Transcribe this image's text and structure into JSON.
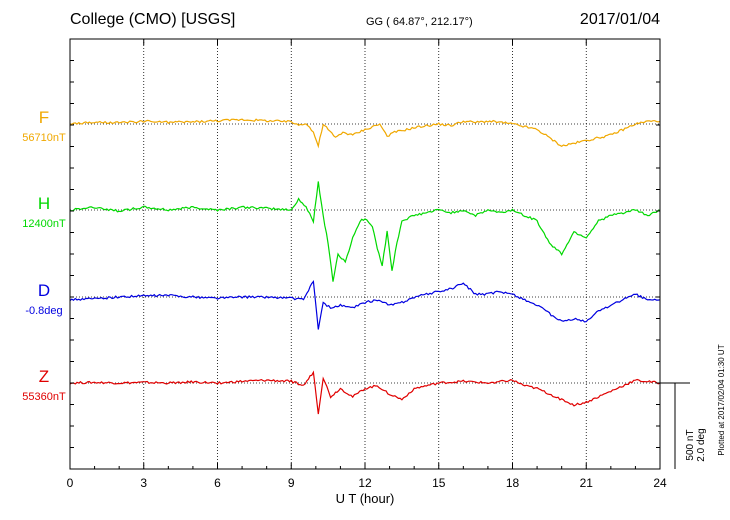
{
  "header": {
    "station": "College (CMO)  [USGS]",
    "coords": "GG ( 64.87°, 212.17°)",
    "date": "2017/01/04"
  },
  "scale": {
    "nt": "500 nT",
    "deg": "2.0 deg"
  },
  "plotted_note": "Plotted at 2017/02/04 01:30 UT",
  "chart_data": {
    "type": "line",
    "xlabel": "U T (hour)",
    "xlim": [
      0,
      24
    ],
    "xticks": [
      0,
      3,
      6,
      9,
      12,
      15,
      18,
      21,
      24
    ],
    "grid": true,
    "series": [
      {
        "name": "F",
        "baseline_label": "56710nT",
        "color": "#f0a800",
        "points": [
          [
            0,
            0
          ],
          [
            1,
            3
          ],
          [
            2,
            2
          ],
          [
            3,
            5
          ],
          [
            4,
            3
          ],
          [
            5,
            4
          ],
          [
            6,
            6
          ],
          [
            7,
            8
          ],
          [
            8,
            6
          ],
          [
            9,
            4
          ],
          [
            9.3,
            -2
          ],
          [
            9.6,
            2
          ],
          [
            9.9,
            -15
          ],
          [
            10.1,
            -40
          ],
          [
            10.3,
            0
          ],
          [
            10.5,
            -10
          ],
          [
            10.8,
            -25
          ],
          [
            11.1,
            -15
          ],
          [
            11.5,
            -20
          ],
          [
            12,
            -10
          ],
          [
            12.3,
            -5
          ],
          [
            12.6,
            0
          ],
          [
            12.9,
            -22
          ],
          [
            13.2,
            -15
          ],
          [
            13.7,
            -10
          ],
          [
            14.2,
            -5
          ],
          [
            15,
            0
          ],
          [
            15.5,
            -3
          ],
          [
            16,
            5
          ],
          [
            16.5,
            3
          ],
          [
            17,
            5
          ],
          [
            17.5,
            3
          ],
          [
            18,
            0
          ],
          [
            18.5,
            -5
          ],
          [
            19,
            -10
          ],
          [
            19.5,
            -25
          ],
          [
            20,
            -40
          ],
          [
            20.5,
            -35
          ],
          [
            21,
            -30
          ],
          [
            21.5,
            -25
          ],
          [
            22,
            -20
          ],
          [
            22.5,
            -10
          ],
          [
            23,
            0
          ],
          [
            23.5,
            5
          ],
          [
            24,
            5
          ]
        ]
      },
      {
        "name": "H",
        "baseline_label": "12400nT",
        "color": "#00d800",
        "points": [
          [
            0,
            0
          ],
          [
            1,
            5
          ],
          [
            2,
            -2
          ],
          [
            3,
            5
          ],
          [
            4,
            0
          ],
          [
            5,
            5
          ],
          [
            6,
            0
          ],
          [
            7,
            5
          ],
          [
            8,
            3
          ],
          [
            9,
            0
          ],
          [
            9.3,
            20
          ],
          [
            9.6,
            5
          ],
          [
            9.9,
            -20
          ],
          [
            10.1,
            50
          ],
          [
            10.3,
            -10
          ],
          [
            10.5,
            -60
          ],
          [
            10.7,
            -130
          ],
          [
            10.9,
            -80
          ],
          [
            11.2,
            -95
          ],
          [
            11.5,
            -50
          ],
          [
            11.8,
            -20
          ],
          [
            12,
            -15
          ],
          [
            12.3,
            -30
          ],
          [
            12.5,
            -70
          ],
          [
            12.7,
            -100
          ],
          [
            12.9,
            -40
          ],
          [
            13.1,
            -110
          ],
          [
            13.3,
            -60
          ],
          [
            13.5,
            -20
          ],
          [
            14,
            -10
          ],
          [
            14.5,
            -5
          ],
          [
            15,
            0
          ],
          [
            15.5,
            -5
          ],
          [
            16,
            0
          ],
          [
            16.5,
            -10
          ],
          [
            17,
            0
          ],
          [
            17.5,
            -5
          ],
          [
            18,
            0
          ],
          [
            18.5,
            -10
          ],
          [
            19,
            -20
          ],
          [
            19.5,
            -60
          ],
          [
            20,
            -80
          ],
          [
            20.5,
            -40
          ],
          [
            21,
            -50
          ],
          [
            21.5,
            -20
          ],
          [
            22,
            -10
          ],
          [
            22.5,
            -5
          ],
          [
            23,
            0
          ],
          [
            23.5,
            -10
          ],
          [
            24,
            0
          ]
        ]
      },
      {
        "name": "D",
        "baseline_label": "-0.8deg",
        "color": "#0000e0",
        "points": [
          [
            0,
            -5
          ],
          [
            1,
            -3
          ],
          [
            2,
            0
          ],
          [
            3,
            2
          ],
          [
            4,
            3
          ],
          [
            5,
            0
          ],
          [
            6,
            -2
          ],
          [
            7,
            0
          ],
          [
            8,
            0
          ],
          [
            9,
            -2
          ],
          [
            9.5,
            -5
          ],
          [
            9.9,
            30
          ],
          [
            10.1,
            -60
          ],
          [
            10.3,
            -10
          ],
          [
            10.6,
            -20
          ],
          [
            11,
            -15
          ],
          [
            11.5,
            -20
          ],
          [
            12,
            -10
          ],
          [
            12.5,
            -5
          ],
          [
            13,
            -15
          ],
          [
            13.5,
            -10
          ],
          [
            14,
            0
          ],
          [
            15,
            10
          ],
          [
            15.5,
            15
          ],
          [
            16,
            25
          ],
          [
            16.5,
            5
          ],
          [
            17,
            5
          ],
          [
            17.5,
            10
          ],
          [
            18,
            5
          ],
          [
            18.5,
            -5
          ],
          [
            19,
            -15
          ],
          [
            19.5,
            -30
          ],
          [
            20,
            -45
          ],
          [
            20.5,
            -40
          ],
          [
            21,
            -45
          ],
          [
            21.5,
            -25
          ],
          [
            22,
            -15
          ],
          [
            22.5,
            -5
          ],
          [
            23,
            5
          ],
          [
            23.5,
            -5
          ],
          [
            24,
            -5
          ]
        ]
      },
      {
        "name": "Z",
        "baseline_label": "55360nT",
        "color": "#e00000",
        "points": [
          [
            0,
            0
          ],
          [
            1,
            1
          ],
          [
            2,
            0
          ],
          [
            3,
            1
          ],
          [
            4,
            0
          ],
          [
            5,
            2
          ],
          [
            6,
            0
          ],
          [
            7,
            3
          ],
          [
            8,
            5
          ],
          [
            9,
            3
          ],
          [
            9.5,
            -5
          ],
          [
            9.9,
            20
          ],
          [
            10.1,
            -55
          ],
          [
            10.3,
            10
          ],
          [
            10.6,
            -25
          ],
          [
            11,
            -10
          ],
          [
            11.5,
            -25
          ],
          [
            12,
            -10
          ],
          [
            12.5,
            -5
          ],
          [
            13,
            -20
          ],
          [
            13.5,
            -30
          ],
          [
            14,
            -10
          ],
          [
            15,
            0
          ],
          [
            16,
            3
          ],
          [
            17,
            0
          ],
          [
            18,
            5
          ],
          [
            18.5,
            -5
          ],
          [
            19,
            -10
          ],
          [
            19.5,
            -20
          ],
          [
            20,
            -30
          ],
          [
            20.5,
            -40
          ],
          [
            21,
            -35
          ],
          [
            21.5,
            -25
          ],
          [
            22,
            -15
          ],
          [
            22.5,
            -5
          ],
          [
            23,
            5
          ],
          [
            24,
            0
          ]
        ]
      }
    ]
  }
}
